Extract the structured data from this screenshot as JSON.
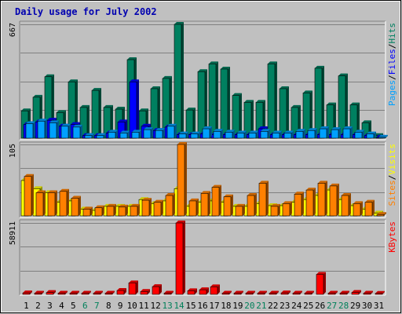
{
  "chart_data": {
    "type": "bar",
    "title": "Daily usage for July 2002",
    "days": [
      1,
      2,
      3,
      4,
      5,
      6,
      7,
      8,
      9,
      10,
      11,
      12,
      13,
      14,
      15,
      16,
      17,
      18,
      19,
      20,
      21,
      22,
      23,
      24,
      25,
      26,
      27,
      28,
      29,
      30,
      31
    ],
    "weekend_days": [
      6,
      7,
      13,
      14,
      20,
      21,
      27,
      28
    ],
    "panels": [
      {
        "id": "hits_files_pages",
        "max_label": "667",
        "ylim": [
          0,
          667
        ],
        "legend": [
          {
            "label": "Pages",
            "color": "#00a0ff"
          },
          {
            "label": "Files",
            "color": "#0000ff"
          },
          {
            "label": "Hits",
            "color": "#008060"
          }
        ],
        "series": [
          {
            "name": "Hits",
            "color": "#008060",
            "values": [
              160,
              240,
              360,
              150,
              330,
              180,
              280,
              180,
              170,
              460,
              160,
              290,
              350,
              667,
              165,
              390,
              435,
              405,
              250,
              210,
              210,
              435,
              290,
              180,
              265,
              410,
              195,
              365,
              195,
              90,
              15
            ]
          },
          {
            "name": "Files",
            "color": "#0000ff",
            "values": [
              80,
              95,
              105,
              70,
              80,
              15,
              15,
              30,
              95,
              330,
              70,
              45,
              65,
              20,
              20,
              25,
              20,
              20,
              20,
              20,
              55,
              20,
              20,
              20,
              20,
              20,
              20,
              20,
              20,
              15,
              5
            ]
          },
          {
            "name": "Pages",
            "color": "#00a0ff",
            "values": [
              85,
              100,
              90,
              70,
              65,
              15,
              15,
              35,
              30,
              35,
              50,
              45,
              70,
              25,
              25,
              55,
              40,
              35,
              30,
              30,
              40,
              30,
              30,
              40,
              45,
              55,
              50,
              55,
              35,
              25,
              5
            ]
          }
        ]
      },
      {
        "id": "visits_sites",
        "max_label": "105",
        "ylim": [
          0,
          105
        ],
        "legend": [
          {
            "label": "Sites",
            "color": "#ff8000"
          },
          {
            "label": "Visits",
            "color": "#ffff00"
          }
        ],
        "series": [
          {
            "name": "Visits",
            "color": "#ffff00",
            "values": [
              52,
              40,
              34,
              20,
              22,
              10,
              8,
              14,
              14,
              14,
              24,
              18,
              22,
              40,
              14,
              20,
              22,
              20,
              14,
              14,
              18,
              15,
              15,
              20,
              24,
              30,
              38,
              24,
              15,
              10,
              4
            ]
          },
          {
            "name": "Sites",
            "color": "#ff8000",
            "values": [
              58,
              34,
              34,
              36,
              26,
              10,
              12,
              14,
              13,
              14,
              23,
              20,
              30,
              105,
              22,
              33,
              42,
              28,
              14,
              30,
              48,
              14,
              18,
              32,
              38,
              48,
              44,
              30,
              18,
              20,
              2
            ]
          }
        ]
      },
      {
        "id": "kbytes",
        "max_label": "58911",
        "ylim": [
          0,
          58911
        ],
        "legend": [
          {
            "label": "KBytes",
            "color": "#ff0000"
          }
        ],
        "series": [
          {
            "name": "KBytes",
            "color": "#ff0000",
            "values": [
              1200,
              1000,
              1500,
              1000,
              1000,
              1000,
              1000,
              1000,
              3200,
              9500,
              2400,
              6400,
              1000,
              58911,
              3000,
              3800,
              6200,
              1000,
              1000,
              1000,
              1000,
              1000,
              1200,
              1000,
              1000,
              16500,
              1000,
              1000,
              1600,
              1000,
              800
            ]
          }
        ]
      }
    ]
  }
}
